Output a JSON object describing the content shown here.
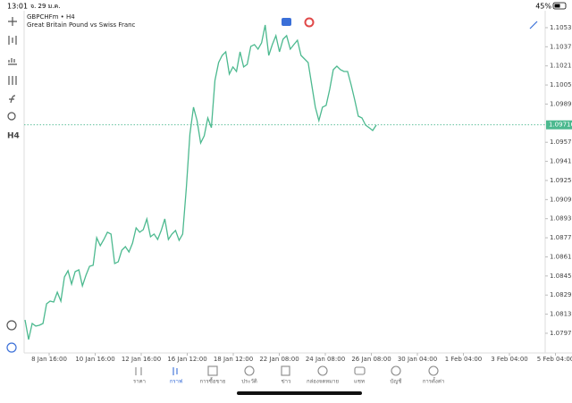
{
  "status_bar": {
    "time": "13:01",
    "date": "จ. 29 ม.ค.",
    "battery": "45%"
  },
  "chart_header": {
    "symbol": "GBPCHFm • H4",
    "description": "Great Britain Pound vs Swiss Franc"
  },
  "toolbar": {
    "timeframe": "H4"
  },
  "chart": {
    "type": "line",
    "color": "#4cb98f",
    "values": [
      1.08082,
      1.07917,
      1.08052,
      1.0803,
      1.08037,
      1.08052,
      1.08217,
      1.08239,
      1.08232,
      1.08314,
      1.08239,
      1.08441,
      1.08494,
      1.08382,
      1.08486,
      1.08501,
      1.08367,
      1.08456,
      1.08531,
      1.08539,
      1.08771,
      1.08703,
      1.08756,
      1.08816,
      1.08801,
      1.08554,
      1.08569,
      1.08666,
      1.08696,
      1.08651,
      1.08726,
      1.08853,
      1.08816,
      1.08838,
      1.08928,
      1.08778,
      1.08801,
      1.08756,
      1.08831,
      1.08928,
      1.08756,
      1.08801,
      1.08831,
      1.08748,
      1.08801,
      1.0919,
      1.09639,
      1.09864,
      1.09751,
      1.09564,
      1.09624,
      1.09774,
      1.09692,
      1.10088,
      1.10238,
      1.10298,
      1.10328,
      1.10141,
      1.10201,
      1.10163,
      1.10328,
      1.10201,
      1.10223,
      1.10373,
      1.10388,
      1.1035,
      1.10403,
      1.10552,
      1.10298,
      1.10388,
      1.10463,
      1.10328,
      1.10433,
      1.10463,
      1.1035,
      1.10388,
      1.10425,
      1.10298,
      1.10268,
      1.10238,
      1.10051,
      1.09864,
      1.09751,
      1.09864,
      1.09879,
      1.10013,
      1.10178,
      1.10208,
      1.10178,
      1.10163,
      1.10163,
      1.10051,
      1.09924,
      1.09789,
      1.09774,
      1.09714,
      1.09692,
      1.09669,
      1.09714
    ],
    "ylim": [
      1.07805,
      1.10672
    ],
    "yticks": [
      {
        "value": 1.1053,
        "label": "1.10530"
      },
      {
        "value": 1.1037,
        "label": "1.10370"
      },
      {
        "value": 1.1021,
        "label": "1.10210"
      },
      {
        "value": 1.1005,
        "label": "1.10050"
      },
      {
        "value": 1.0989,
        "label": "1.09890"
      },
      {
        "value": 1.0957,
        "label": "1.09570"
      },
      {
        "value": 1.0941,
        "label": "1.09410"
      },
      {
        "value": 1.0925,
        "label": "1.09250"
      },
      {
        "value": 1.0909,
        "label": "1.09090"
      },
      {
        "value": 1.0893,
        "label": "1.08930"
      },
      {
        "value": 1.0877,
        "label": "1.08770"
      },
      {
        "value": 1.0861,
        "label": "1.08610"
      },
      {
        "value": 1.0845,
        "label": "1.08450"
      },
      {
        "value": 1.0829,
        "label": "1.08290"
      },
      {
        "value": 1.0813,
        "label": "1.08130"
      },
      {
        "value": 1.0797,
        "label": "1.07970"
      }
    ],
    "current_price": {
      "value": 1.09716,
      "label": "1.09716"
    },
    "x_labels": [
      "8 Jan 16:00",
      "10 Jan 16:00",
      "12 Jan 16:00",
      "16 Jan 12:00",
      "18 Jan 12:00",
      "22 Jan 08:00",
      "24 Jan 08:00",
      "26 Jan 08:00",
      "30 Jan 04:00",
      "1 Feb 04:00",
      "3 Feb 04:00",
      "5 Feb 04:00"
    ]
  },
  "nav": [
    {
      "label": "ราคา"
    },
    {
      "label": "กราฟ",
      "active": true
    },
    {
      "label": "การซื้อขาย"
    },
    {
      "label": "ประวัติ"
    },
    {
      "label": "ข่าว"
    },
    {
      "label": "กล่องจดหมาย"
    },
    {
      "label": "แชท"
    },
    {
      "label": "บัญชี"
    },
    {
      "label": "การตั้งค่า"
    }
  ]
}
